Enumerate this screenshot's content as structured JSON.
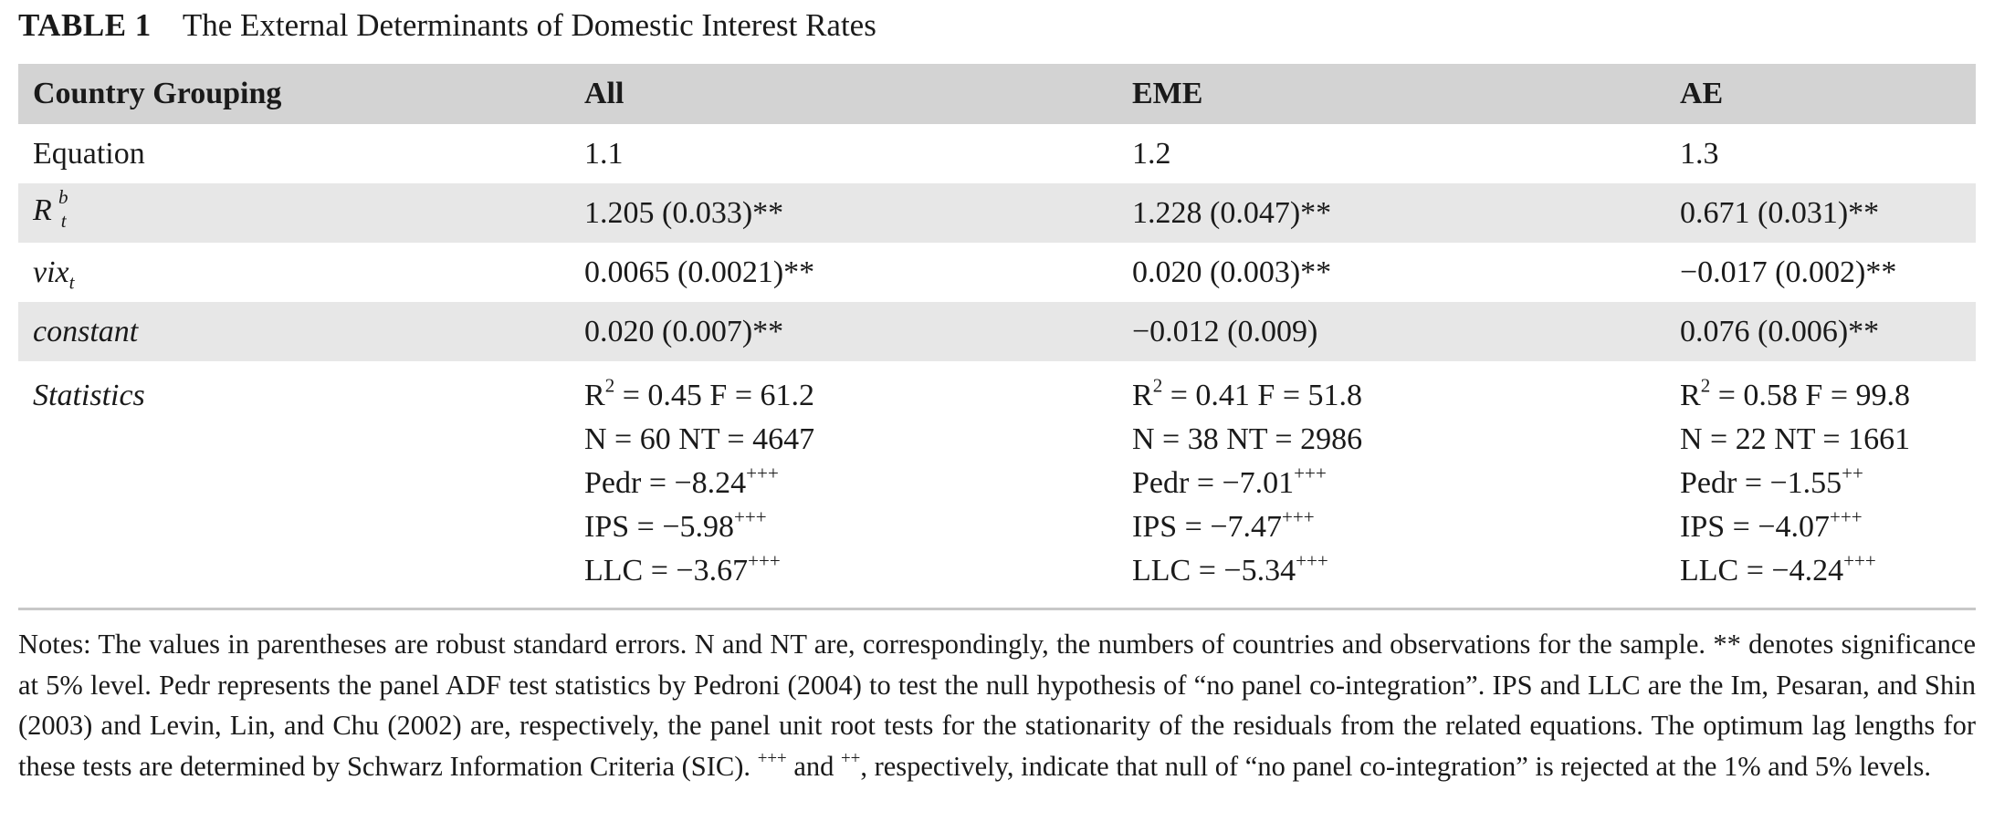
{
  "caption": {
    "tag": "TABLE 1",
    "title": "The External Determinants of Domestic Interest Rates"
  },
  "table": {
    "header": {
      "label": "Country Grouping",
      "all": "All",
      "eme": "EME",
      "ae": "AE"
    },
    "rows": {
      "equation": {
        "label": "Equation",
        "all": "1.1",
        "eme": "1.2",
        "ae": "1.3"
      },
      "rbt": {
        "label_base": "R",
        "label_sup": "b",
        "label_sub": "t",
        "all": "1.205 (0.033)**",
        "eme": "1.228 (0.047)**",
        "ae": "0.671 (0.031)**"
      },
      "vix": {
        "label_base": "vix",
        "label_sub": "t",
        "all": "0.0065 (0.0021)**",
        "eme": "0.020 (0.003)**",
        "ae": "−0.017 (0.002)**"
      },
      "constant": {
        "label": "constant",
        "all": "0.020 (0.007)**",
        "eme": "−0.012 (0.009)",
        "ae": "0.076 (0.006)**"
      },
      "statistics": {
        "label": "Statistics",
        "all": {
          "r2_prefix": "R",
          "r2_sup": "2",
          "r2_rest": " = 0.45 F = 61.2",
          "n": "N = 60 NT = 4647",
          "pedr": "Pedr = −8.24",
          "pedr_sup": "+++",
          "ips": "IPS = −5.98",
          "ips_sup": "+++",
          "llc": "LLC = −3.67",
          "llc_sup": "+++"
        },
        "eme": {
          "r2_prefix": "R",
          "r2_sup": "2",
          "r2_rest": " = 0.41 F = 51.8",
          "n": "N = 38 NT = 2986",
          "pedr": "Pedr = −7.01",
          "pedr_sup": "+++",
          "ips": "IPS = −7.47",
          "ips_sup": "+++",
          "llc": "LLC = −5.34",
          "llc_sup": "+++"
        },
        "ae": {
          "r2_prefix": "R",
          "r2_sup": "2",
          "r2_rest": " = 0.58 F = 99.8",
          "n": "N = 22 NT = 1661",
          "pedr": "Pedr = −1.55",
          "pedr_sup": "++",
          "ips": "IPS = −4.07",
          "ips_sup": "+++",
          "llc": "LLC = −4.24",
          "llc_sup": "+++"
        }
      }
    }
  },
  "notes": {
    "part1": "Notes: The values in parentheses are robust standard errors. N and NT are, correspondingly, the numbers of countries and observations for the sample. ** denotes significance at 5% level. Pedr represents the panel ADF test statistics by Pedroni (2004) to test the null hypothesis of “no panel co-integration”. IPS and LLC are the Im, Pesaran, and Shin (2003) and Levin, Lin, and Chu (2002) are, respectively, the panel unit root tests for the stationarity of the residuals from the related equations. The optimum lag lengths for these tests are determined by Schwarz Information Criteria (SIC). ",
    "sup1": "+++",
    "part2": " and ",
    "sup2": "++",
    "part3": ", respectively, indicate that null of “no panel co-integration” is rejected at the 1% and 5% levels."
  }
}
